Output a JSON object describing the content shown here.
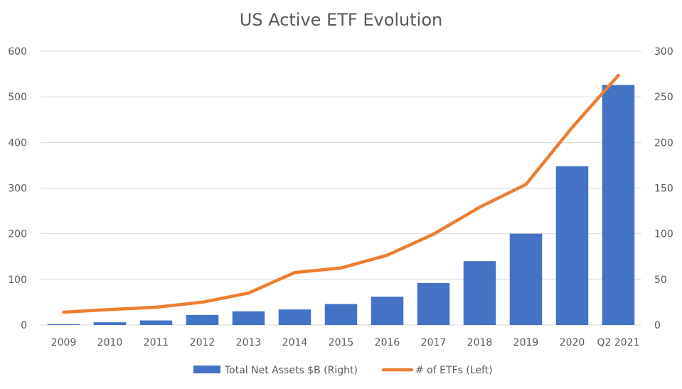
{
  "chart_data": {
    "type": "bar",
    "title": "US Active ETF Evolution",
    "categories": [
      "2009",
      "2010",
      "2011",
      "2012",
      "2013",
      "2014",
      "2015",
      "2016",
      "2017",
      "2018",
      "2019",
      "2020",
      "Q2 2021"
    ],
    "series": [
      {
        "name": "Total Net Assets $B (Right)",
        "type": "bar",
        "axis": "right",
        "color": "#4472C4",
        "values": [
          1,
          3,
          5,
          11,
          15,
          17,
          23,
          31,
          46,
          70,
          100,
          174,
          263
        ]
      },
      {
        "name": "# of ETFs (Left)",
        "type": "line",
        "axis": "left",
        "color": "#ED7D31",
        "values": [
          28,
          34,
          39,
          50,
          70,
          115,
          125,
          153,
          199,
          258,
          308,
          433,
          547
        ]
      }
    ],
    "left_axis": {
      "min": 0,
      "max": 600,
      "ticks": [
        "0",
        "100",
        "200",
        "300",
        "400",
        "500",
        "600"
      ]
    },
    "right_axis": {
      "min": 0,
      "max": 300,
      "ticks": [
        "0",
        "50",
        "100",
        "150",
        "200",
        "250",
        "300"
      ]
    },
    "grid": true,
    "legend_position": "bottom"
  }
}
